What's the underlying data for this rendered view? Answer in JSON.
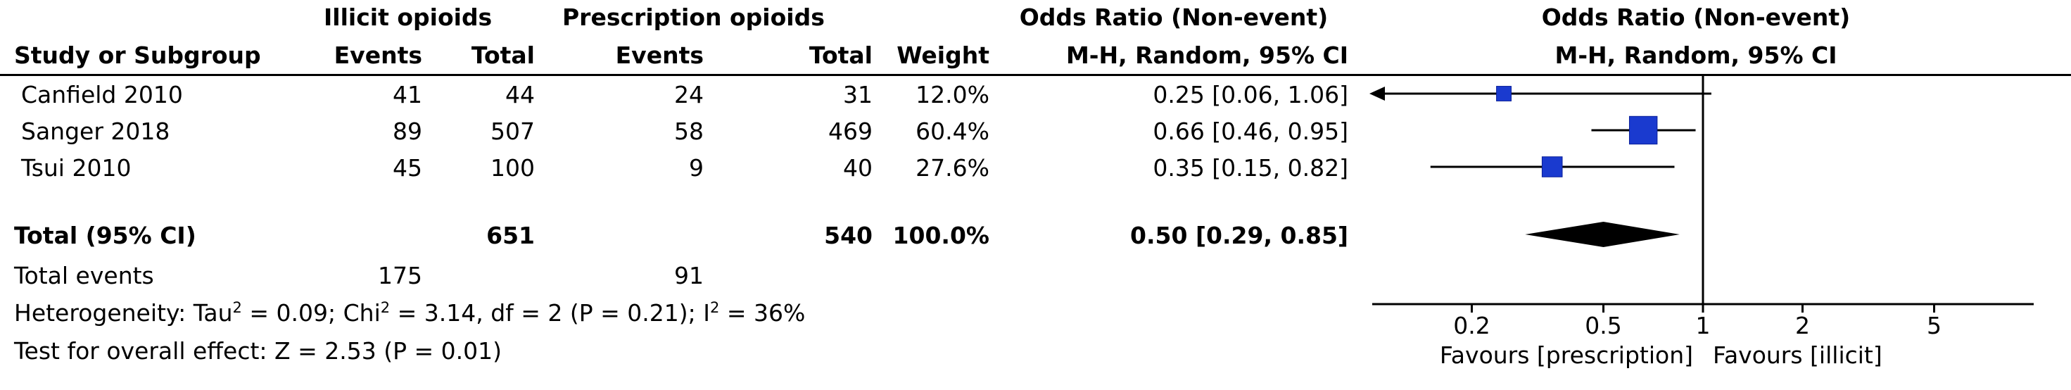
{
  "headers": {
    "group1": "Illicit opioids",
    "group2": "Prescription opioids",
    "or_table": "Odds Ratio (Non-event)",
    "or_table_sub": "M-H, Random, 95% CI",
    "or_plot": "Odds Ratio (Non-event)",
    "or_plot_sub": "M-H, Random, 95% CI",
    "study": "Study or Subgroup",
    "events1": "Events",
    "total1": "Total",
    "events2": "Events",
    "total2": "Total",
    "weight": "Weight"
  },
  "studies": [
    {
      "name": "Canfield 2010",
      "events1": "41",
      "total1": "44",
      "events2": "24",
      "total2": "31",
      "weight": "12.0%",
      "ci_text": "0.25 [0.06, 1.06]"
    },
    {
      "name": "Sanger 2018",
      "events1": "89",
      "total1": "507",
      "events2": "58",
      "total2": "469",
      "weight": "60.4%",
      "ci_text": "0.66 [0.46, 0.95]"
    },
    {
      "name": "Tsui 2010",
      "events1": "45",
      "total1": "100",
      "events2": "9",
      "total2": "40",
      "weight": "27.6%",
      "ci_text": "0.35 [0.15, 0.82]"
    }
  ],
  "total": {
    "label": "Total (95% CI)",
    "total1": "651",
    "total2": "540",
    "weight": "100.0%",
    "ci_text": "0.50 [0.29, 0.85]"
  },
  "total_events": {
    "label": "Total events",
    "events1": "175",
    "events2": "91"
  },
  "heterogeneity": {
    "part1": "Heterogeneity: Tau",
    "part2": " = 0.09; Chi",
    "part3": " = 3.14, df = 2 (P = 0.21); I",
    "part4": " = 36%",
    "sup": "2"
  },
  "overall_effect": "Test for overall effect: Z = 2.53 (P = 0.01)",
  "chart_data": {
    "type": "scatter",
    "title": "Odds Ratio (Non-event)",
    "subtitle": "M-H, Random, 95% CI",
    "x_scale": "log",
    "xlim": [
      0.1,
      10
    ],
    "x_ticks": [
      0.2,
      0.5,
      1,
      2,
      5
    ],
    "x_tick_labels": [
      "0.2",
      "0.5",
      "1",
      "2",
      "5"
    ],
    "favours_left": "Favours [prescription]",
    "favours_right": "Favours [illicit]",
    "studies": [
      {
        "name": "Canfield 2010",
        "or": 0.25,
        "lo": 0.06,
        "hi": 1.06,
        "weight": 12.0
      },
      {
        "name": "Sanger 2018",
        "or": 0.66,
        "lo": 0.46,
        "hi": 0.95,
        "weight": 60.4
      },
      {
        "name": "Tsui 2010",
        "or": 0.35,
        "lo": 0.15,
        "hi": 0.82,
        "weight": 27.6
      }
    ],
    "pooled": {
      "or": 0.5,
      "lo": 0.29,
      "hi": 0.85
    },
    "colors": {
      "square": "#1a3acf",
      "diamond": "#000000",
      "line": "#000000"
    }
  }
}
